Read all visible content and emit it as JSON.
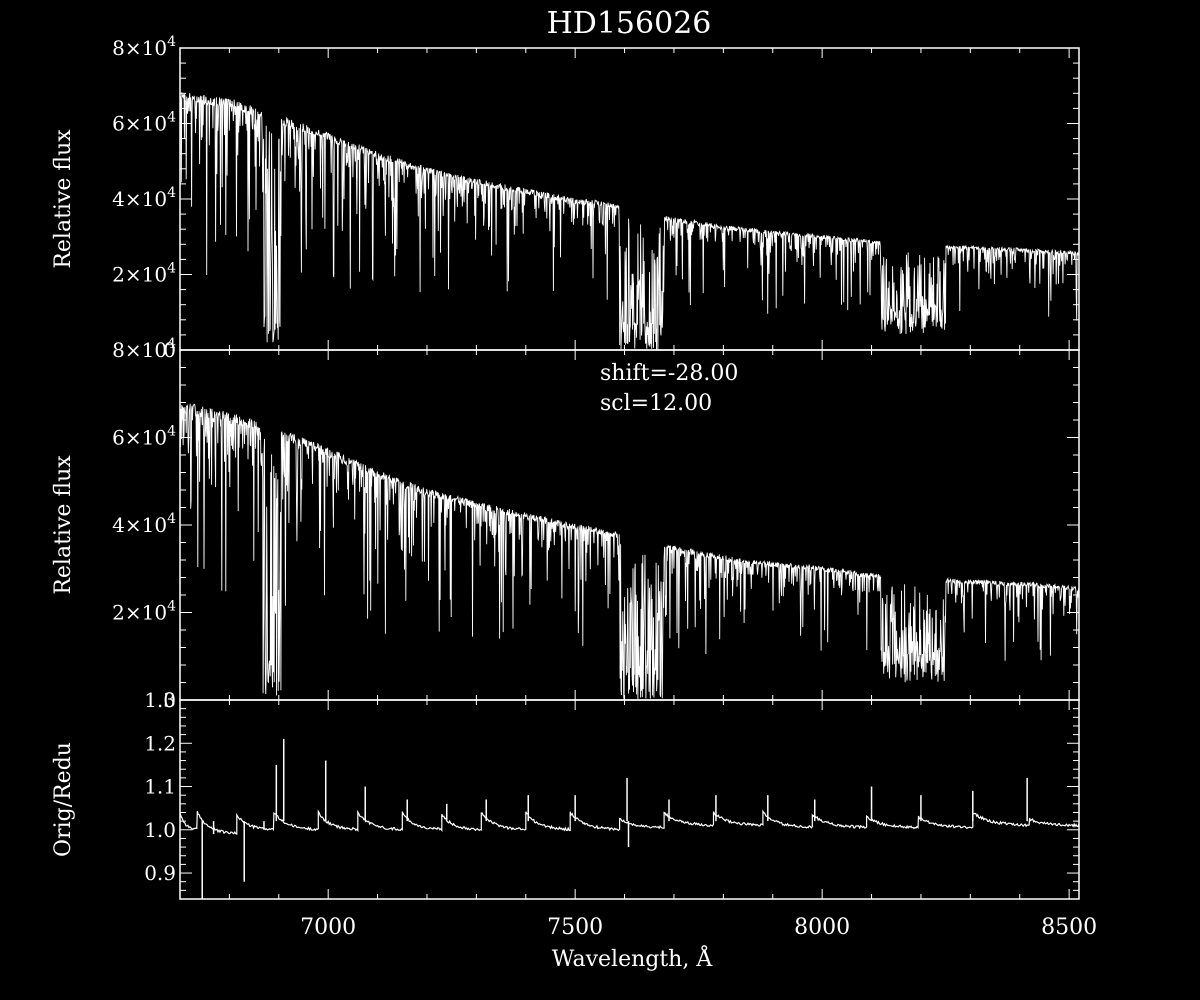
{
  "title": "HD156026",
  "colors": {
    "background": "#000000",
    "foreground": "#ffffff"
  },
  "chart_data": [
    {
      "type": "line",
      "panel": "top",
      "ylabel": "Relative flux",
      "xlim": [
        6700,
        8520
      ],
      "ylim": [
        0,
        80000
      ],
      "ytick_values": [
        0,
        20000,
        40000,
        60000,
        80000
      ],
      "ytick_labels": [
        {
          "mant": "0",
          "exp": ""
        },
        {
          "mant": "2×10",
          "exp": "4"
        },
        {
          "mant": "4×10",
          "exp": "4"
        },
        {
          "mant": "6×10",
          "exp": "4"
        },
        {
          "mant": "8×10",
          "exp": "4"
        }
      ],
      "continuum": [
        [
          6700,
          67000
        ],
        [
          6800,
          65500
        ],
        [
          6900,
          61000
        ],
        [
          7000,
          56500
        ],
        [
          7100,
          51500
        ],
        [
          7200,
          47500
        ],
        [
          7300,
          44500
        ],
        [
          7400,
          42000
        ],
        [
          7500,
          39500
        ],
        [
          7600,
          38000
        ],
        [
          7650,
          35500
        ],
        [
          7700,
          34500
        ],
        [
          7800,
          32500
        ],
        [
          7900,
          31000
        ],
        [
          8000,
          30000
        ],
        [
          8100,
          28500
        ],
        [
          8200,
          27500
        ],
        [
          8300,
          27000
        ],
        [
          8400,
          26500
        ],
        [
          8520,
          25500
        ]
      ],
      "bands": [
        [
          6868,
          6905,
          1000
        ],
        [
          7590,
          7615,
          0
        ],
        [
          7615,
          7680,
          0
        ],
        [
          8120,
          8250,
          4000
        ]
      ],
      "annotations": []
    },
    {
      "type": "line",
      "panel": "middle",
      "ylabel": "Relative flux",
      "xlim": [
        6700,
        8520
      ],
      "ylim": [
        0,
        80000
      ],
      "ytick_values": [
        0,
        20000,
        40000,
        60000,
        80000
      ],
      "ytick_labels": [
        {
          "mant": "0",
          "exp": ""
        },
        {
          "mant": "2×10",
          "exp": "4"
        },
        {
          "mant": "4×10",
          "exp": "4"
        },
        {
          "mant": "6×10",
          "exp": "4"
        },
        {
          "mant": "8×10",
          "exp": "4"
        }
      ],
      "continuum": [
        [
          6700,
          67000
        ],
        [
          6800,
          64500
        ],
        [
          6900,
          61000
        ],
        [
          7000,
          56500
        ],
        [
          7100,
          51500
        ],
        [
          7200,
          47500
        ],
        [
          7300,
          44500
        ],
        [
          7400,
          42000
        ],
        [
          7500,
          39500
        ],
        [
          7600,
          37500
        ],
        [
          7650,
          35500
        ],
        [
          7700,
          34500
        ],
        [
          7800,
          32500
        ],
        [
          7900,
          31000
        ],
        [
          8000,
          30000
        ],
        [
          8100,
          28500
        ],
        [
          8200,
          27500
        ],
        [
          8300,
          27000
        ],
        [
          8400,
          26500
        ],
        [
          8520,
          25500
        ]
      ],
      "bands": [
        [
          6868,
          6905,
          1000
        ],
        [
          7590,
          7615,
          0
        ],
        [
          7615,
          7680,
          0
        ],
        [
          8120,
          8250,
          4000
        ]
      ],
      "annotations": [
        "shift=-28.00",
        "scl=12.00"
      ]
    },
    {
      "type": "line",
      "panel": "bottom",
      "xlabel": "Wavelength, Å",
      "ylabel": "Orig/Redu",
      "xlim": [
        6700,
        8520
      ],
      "ylim": [
        0.84,
        1.3
      ],
      "xtick_values": [
        7000,
        7500,
        8000,
        8500
      ],
      "xtick_labels": [
        "7000",
        "7500",
        "8000",
        "8500"
      ],
      "ytick_values": [
        0.9,
        1.0,
        1.1,
        1.2,
        1.3
      ],
      "ytick_labels": [
        "0.9",
        "1.0",
        "1.1",
        "1.2",
        "1.3"
      ],
      "segments": [
        [
          6700,
          6735,
          1.04,
          1.0
        ],
        [
          6735,
          6815,
          1.04,
          0.99
        ],
        [
          6815,
          6890,
          1.035,
          1.0
        ],
        [
          6890,
          6980,
          1.04,
          1.0
        ],
        [
          6980,
          7060,
          1.04,
          1.0
        ],
        [
          7060,
          7150,
          1.04,
          1.0
        ],
        [
          7150,
          7230,
          1.04,
          1.0
        ],
        [
          7230,
          7310,
          1.035,
          1.0
        ],
        [
          7310,
          7400,
          1.04,
          1.0
        ],
        [
          7400,
          7490,
          1.04,
          1.0
        ],
        [
          7490,
          7590,
          1.04,
          1.0
        ],
        [
          7590,
          7680,
          1.025,
          1.005
        ],
        [
          7680,
          7780,
          1.04,
          1.01
        ],
        [
          7780,
          7880,
          1.04,
          1.01
        ],
        [
          7880,
          7980,
          1.04,
          1.005
        ],
        [
          7980,
          8090,
          1.035,
          1.005
        ],
        [
          8090,
          8195,
          1.03,
          1.005
        ],
        [
          8195,
          8305,
          1.03,
          1.005
        ],
        [
          8305,
          8420,
          1.04,
          1.01
        ],
        [
          8420,
          8520,
          1.025,
          1.01
        ]
      ],
      "spikes": [
        [
          6745,
          0.84
        ],
        [
          6768,
          0.99
        ],
        [
          6830,
          0.88
        ],
        [
          6870,
          1.0
        ],
        [
          6895,
          1.15
        ],
        [
          6910,
          1.21
        ],
        [
          6995,
          1.16
        ],
        [
          7075,
          1.1
        ],
        [
          7160,
          1.07
        ],
        [
          7240,
          1.06
        ],
        [
          7320,
          1.07
        ],
        [
          7405,
          1.08
        ],
        [
          7500,
          1.08
        ],
        [
          7605,
          1.12
        ],
        [
          7608,
          0.96
        ],
        [
          7690,
          1.07
        ],
        [
          7785,
          1.08
        ],
        [
          7890,
          1.08
        ],
        [
          7985,
          1.07
        ],
        [
          8100,
          1.1
        ],
        [
          8200,
          1.08
        ],
        [
          8305,
          1.09
        ],
        [
          8415,
          1.12
        ]
      ]
    }
  ]
}
